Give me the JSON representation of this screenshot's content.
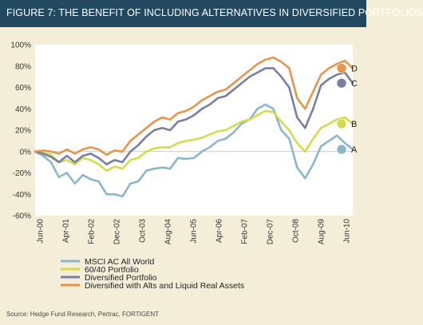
{
  "title": "FIGURE 7: THE BENEFIT OF INCLUDING ALTERNATIVES IN DIVERSIFIED PORTFOLIOS",
  "source": "Source: Hedge Fund Research, Pertrac, FORTIGENT",
  "colors": {
    "title_bar": "#22495f",
    "background": "#f4eed8",
    "plot_background": "#ffffff"
  },
  "chart_data": {
    "type": "line",
    "x_labels": [
      "Jun-00",
      "Apr-01",
      "Feb-02",
      "Dec-02",
      "Oct-03",
      "Aug-04",
      "Jun-05",
      "Apr-06",
      "Feb-07",
      "Dec-07",
      "Oct-08",
      "Aug-09",
      "Jun-10"
    ],
    "y_ticks": [
      "100%",
      "80%",
      "60%",
      "40%",
      "20%",
      "0%",
      "-20%",
      "-40%",
      "-60%"
    ],
    "ylim": [
      -60,
      100
    ],
    "y_unit": "%",
    "grid": false,
    "legend_position": "bottom-left",
    "x": [
      0,
      1,
      2,
      3,
      4,
      5,
      6,
      7,
      8,
      9,
      10,
      11,
      12,
      13,
      14,
      15,
      16,
      17,
      18,
      19,
      20,
      21,
      22,
      23,
      24,
      25,
      26,
      27,
      28,
      29,
      30,
      31,
      32,
      33,
      34,
      35,
      36,
      37,
      38,
      39,
      40
    ],
    "series": [
      {
        "name": "MSCI AC All World",
        "color": "#8ab7cc",
        "end_label": "A",
        "values": [
          0,
          -4,
          -10,
          -24,
          -20,
          -30,
          -22,
          -26,
          -28,
          -40,
          -40,
          -42,
          -30,
          -28,
          -18,
          -16,
          -15,
          -16,
          -6,
          -7,
          -6,
          0,
          4,
          10,
          12,
          18,
          26,
          30,
          40,
          44,
          40,
          20,
          12,
          -15,
          -25,
          -12,
          5,
          10,
          15,
          8,
          2
        ]
      },
      {
        "name": "60/40 Portfolio",
        "color": "#d2dc4c",
        "end_label": "B",
        "values": [
          0,
          -1,
          -3,
          -10,
          -8,
          -12,
          -6,
          -8,
          -12,
          -18,
          -14,
          -16,
          -8,
          -6,
          0,
          3,
          4,
          4,
          8,
          10,
          11,
          13,
          16,
          19,
          20,
          24,
          28,
          30,
          34,
          38,
          37,
          28,
          20,
          8,
          0,
          12,
          22,
          26,
          30,
          32,
          26
        ]
      },
      {
        "name": "Diversified Portfolio",
        "color": "#7b7ea3",
        "end_label": "C",
        "values": [
          0,
          -2,
          -5,
          -10,
          -4,
          -10,
          -4,
          -2,
          -6,
          -12,
          -8,
          -10,
          0,
          6,
          14,
          20,
          22,
          20,
          28,
          30,
          34,
          40,
          44,
          50,
          52,
          58,
          64,
          70,
          74,
          78,
          78,
          70,
          60,
          32,
          22,
          40,
          62,
          68,
          72,
          74,
          64
        ]
      },
      {
        "name": "Diversified with Alts and Liquid Real Assets",
        "color": "#e8944a",
        "end_label": "D",
        "values": [
          0,
          1,
          0,
          -2,
          2,
          -2,
          2,
          4,
          2,
          -3,
          1,
          0,
          10,
          16,
          22,
          28,
          32,
          30,
          36,
          38,
          42,
          48,
          52,
          56,
          58,
          64,
          70,
          76,
          82,
          86,
          88,
          84,
          78,
          50,
          40,
          56,
          72,
          78,
          82,
          85,
          78
        ]
      }
    ]
  }
}
